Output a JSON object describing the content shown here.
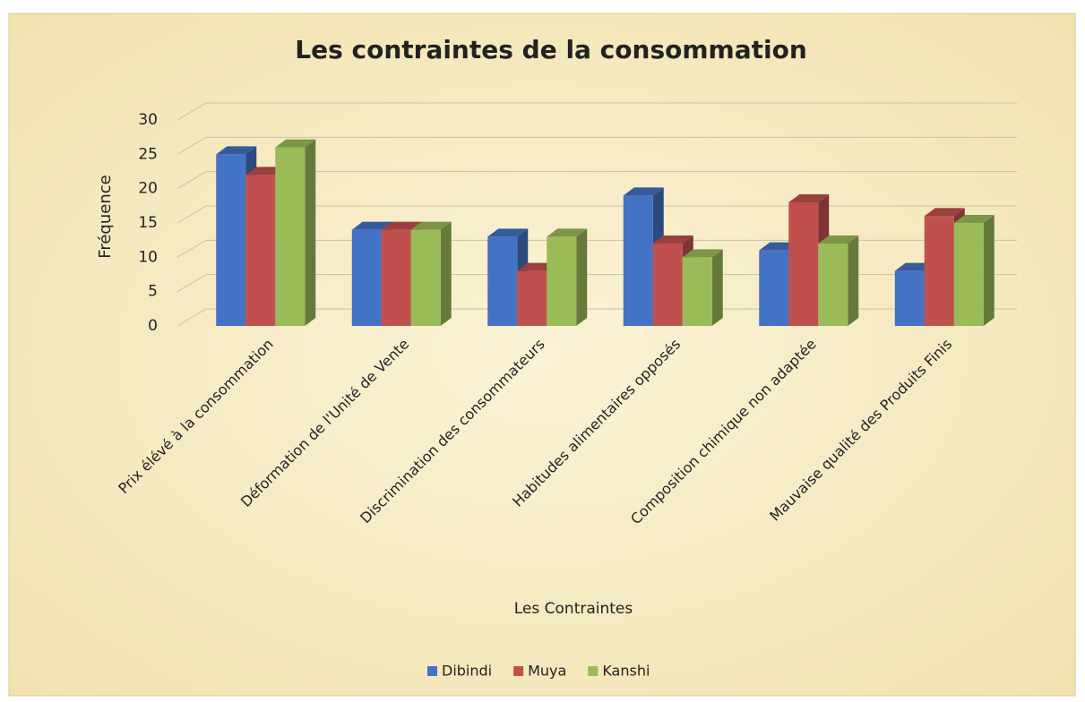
{
  "chart_data": {
    "type": "bar3d",
    "title": "Les contraintes de la consommation",
    "x_label": "Les Contraintes",
    "y_label": "Fréquence",
    "categories": [
      "Prix élévé à la consommation",
      "Déformation de l'Unité de Vente",
      "Discrimination des consommateurs",
      "Habitudes alimentaires opposés",
      "Composition chimique non adaptée",
      "Mauvaise qualité des Produits Finis"
    ],
    "series": [
      {
        "name": "Dibindi",
        "color": "#4472c4",
        "values": [
          25,
          14,
          13,
          19,
          11,
          8
        ]
      },
      {
        "name": "Muya",
        "color": "#c0504d",
        "values": [
          22,
          14,
          8,
          12,
          18,
          16
        ]
      },
      {
        "name": "Kanshi",
        "color": "#9bbb59",
        "values": [
          26,
          14,
          13,
          10,
          12,
          15
        ]
      }
    ],
    "ylim": [
      0,
      30
    ],
    "yticks": [
      0,
      5,
      10,
      15,
      20,
      25,
      30
    ],
    "grid": true,
    "legend": "bottom"
  }
}
